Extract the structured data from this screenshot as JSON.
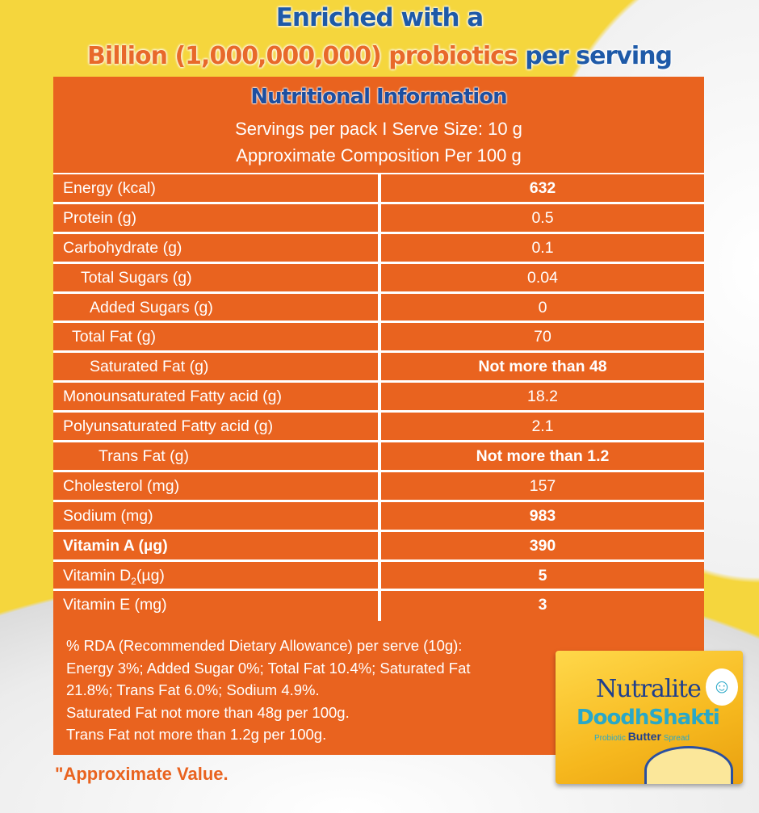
{
  "headline": {
    "line1": "Enriched with a",
    "line2_orange": "Billion (1,000,000,000) probiotics",
    "line2_blue": "per serving"
  },
  "panel": {
    "title": "Nutritional Information",
    "servings": "Servings per pack I  Serve Size: 10 g",
    "composition": "Approximate Composition Per 100 g"
  },
  "rows": [
    {
      "label": "Energy (kcal)",
      "value": "632",
      "indent": 0,
      "bold_value": true
    },
    {
      "label": "Protein (g)",
      "value": "0.5",
      "indent": 0
    },
    {
      "label": "Carbohydrate (g)",
      "value": "0.1",
      "indent": 0
    },
    {
      "label": "Total Sugars (g)",
      "value": "0.04",
      "indent": 2
    },
    {
      "label": "Added Sugars (g)",
      "value": "0",
      "indent": 3
    },
    {
      "label": "Total Fat (g)",
      "value": "70",
      "indent": 1
    },
    {
      "label": "Saturated Fat (g)",
      "value": "Not more than 48",
      "indent": 3,
      "bold_value": true
    },
    {
      "label": "Monounsaturated Fatty acid (g)",
      "value": "18.2",
      "indent": 0
    },
    {
      "label": "Polyunsaturated Fatty acid (g)",
      "value": "2.1",
      "indent": 0
    },
    {
      "label": "Trans Fat (g)",
      "value": "Not more than 1.2",
      "indent": 4,
      "bold_value": true
    },
    {
      "label": "Cholesterol (mg)",
      "value": "157",
      "indent": 0
    },
    {
      "label": "Sodium (mg)",
      "value": "983",
      "indent": 0,
      "bold_value": true
    },
    {
      "label": "Vitamin A (µg)",
      "value": "390",
      "indent": 0,
      "bold_value": true,
      "bold_label": true
    },
    {
      "label": "Vitamin D",
      "label_sub": "2",
      "label_suffix": "(µg)",
      "value": "5",
      "indent": 0,
      "bold_value": true
    },
    {
      "label": "Vitamin E (mg)",
      "value": "3",
      "indent": 0,
      "bold_value": true
    }
  ],
  "rda": [
    "% RDA (Recommended Dietary Allowance) per serve (10g):",
    "Energy 3%; Added Sugar 0%; Total Fat 10.4%; Saturated Fat",
    "21.8%; Trans Fat 6.0%; Sodium 4.9%.",
    "Saturated Fat not more than 48g per 100g.",
    "Trans Fat not more than 1.2g per 100g."
  ],
  "footnote": "\"Approximate Value.",
  "product": {
    "brand": "Nutralite",
    "name": "DoodhShakti",
    "tag_pre": "Probiotic",
    "tag_main": "Butter",
    "tag_post": "Spread"
  },
  "colors": {
    "panel": "#e9631f",
    "background": "#f5d63d",
    "heading_blue": "#1e5aa8"
  }
}
